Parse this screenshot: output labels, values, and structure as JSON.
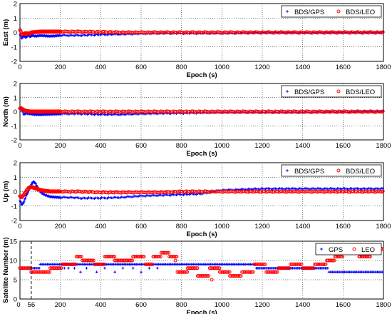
{
  "chart_data": [
    {
      "type": "scatter",
      "ylabel": "East (m)",
      "xlabel": "Epoch (s)",
      "xlim": [
        0,
        1800
      ],
      "ylim": [
        -2,
        2
      ],
      "xticks": [
        0,
        200,
        400,
        600,
        800,
        1000,
        1200,
        1400,
        1600,
        1800
      ],
      "yticks": [
        -2,
        -1,
        0,
        1,
        2
      ],
      "grid": true,
      "legend_position": "top-right",
      "series": [
        {
          "name": "BDS/GPS",
          "marker": "plus",
          "color": "#0000ff",
          "x": [
            0,
            10,
            20,
            30,
            40,
            50,
            60,
            80,
            100,
            150,
            200,
            300,
            400,
            500,
            600,
            700,
            800,
            900,
            1000,
            1100,
            1200,
            1300,
            1400,
            1500,
            1600,
            1700,
            1800
          ],
          "y": [
            -0.1,
            -0.4,
            -0.2,
            -0.35,
            -0.15,
            -0.3,
            -0.2,
            -0.25,
            -0.2,
            -0.25,
            -0.2,
            -0.2,
            -0.15,
            -0.12,
            -0.08,
            -0.05,
            -0.05,
            -0.05,
            -0.05,
            -0.03,
            0,
            0,
            -0.02,
            0,
            0,
            0,
            0
          ]
        },
        {
          "name": "BDS/LEO",
          "marker": "circle",
          "color": "#ff0000",
          "x": [
            0,
            10,
            20,
            30,
            40,
            50,
            60,
            80,
            100,
            150,
            200,
            300,
            400,
            500,
            600,
            700,
            800,
            900,
            1000,
            1100,
            1200,
            1300,
            1400,
            1500,
            1600,
            1700,
            1800
          ],
          "y": [
            0.2,
            -0.15,
            -0.1,
            -0.05,
            -0.1,
            -0.05,
            0,
            0.02,
            0.05,
            0.05,
            0.05,
            0.05,
            0.03,
            0,
            0,
            0,
            0,
            0,
            0,
            0,
            0,
            0,
            0,
            0,
            0,
            0,
            0
          ]
        }
      ]
    },
    {
      "type": "scatter",
      "ylabel": "North (m)",
      "xlabel": "Epoch (s)",
      "xlim": [
        0,
        1800
      ],
      "ylim": [
        -2,
        2
      ],
      "xticks": [
        0,
        200,
        400,
        600,
        800,
        1000,
        1200,
        1400,
        1600,
        1800
      ],
      "yticks": [
        -2,
        -1,
        0,
        1,
        2
      ],
      "grid": true,
      "legend_position": "top-right",
      "series": [
        {
          "name": "BDS/GPS",
          "marker": "plus",
          "color": "#0000ff",
          "x": [
            0,
            10,
            20,
            30,
            50,
            80,
            100,
            200,
            300,
            400,
            500,
            600,
            700,
            800,
            900,
            1000,
            1100,
            1200,
            1300,
            1400,
            1500,
            1600,
            1700,
            1800
          ],
          "y": [
            0.3,
            0.1,
            -0.2,
            -0.1,
            -0.15,
            -0.2,
            -0.2,
            -0.15,
            -0.15,
            -0.2,
            -0.2,
            -0.15,
            -0.12,
            -0.1,
            -0.08,
            -0.05,
            -0.05,
            -0.05,
            -0.05,
            -0.05,
            -0.03,
            -0.03,
            0,
            0
          ]
        },
        {
          "name": "BDS/LEO",
          "marker": "circle",
          "color": "#ff0000",
          "x": [
            0,
            10,
            20,
            30,
            50,
            80,
            100,
            200,
            300,
            400,
            500,
            600,
            700,
            800,
            900,
            1000,
            1100,
            1200,
            1300,
            1400,
            1500,
            1600,
            1700,
            1800
          ],
          "y": [
            0.25,
            0.2,
            0.1,
            0.05,
            0,
            0,
            0,
            0,
            0,
            0,
            0,
            0,
            0,
            0,
            0,
            0,
            0,
            0,
            0,
            0,
            0,
            0,
            0,
            0
          ]
        }
      ]
    },
    {
      "type": "scatter",
      "ylabel": "Up (m)",
      "xlabel": "Epoch (s)",
      "xlim": [
        0,
        1800
      ],
      "ylim": [
        -2,
        2
      ],
      "xticks": [
        0,
        200,
        400,
        600,
        800,
        1000,
        1200,
        1400,
        1600,
        1800
      ],
      "yticks": [
        -2,
        -1,
        0,
        1,
        2
      ],
      "grid": true,
      "legend_position": "top-right",
      "series": [
        {
          "name": "BDS/GPS",
          "marker": "plus",
          "color": "#0000ff",
          "x": [
            0,
            10,
            20,
            30,
            40,
            50,
            60,
            70,
            80,
            90,
            100,
            120,
            150,
            200,
            250,
            300,
            400,
            500,
            600,
            700,
            800,
            900,
            1000,
            1100,
            1200,
            1300,
            1400,
            1500,
            1600,
            1700,
            1800
          ],
          "y": [
            -0.6,
            -0.9,
            -0.7,
            -0.3,
            0,
            0.3,
            0.6,
            0.7,
            0.5,
            0.2,
            0,
            -0.2,
            -0.35,
            -0.4,
            -0.4,
            -0.45,
            -0.45,
            -0.4,
            -0.3,
            -0.25,
            -0.2,
            -0.15,
            0.1,
            0.15,
            0.2,
            0.2,
            0.2,
            0.2,
            0.2,
            0.2,
            0.2
          ]
        },
        {
          "name": "BDS/LEO",
          "marker": "circle",
          "color": "#ff0000",
          "x": [
            0,
            10,
            20,
            30,
            40,
            50,
            60,
            70,
            80,
            90,
            100,
            120,
            150,
            200,
            250,
            300,
            400,
            500,
            600,
            700,
            800,
            900,
            1000,
            1100,
            1200,
            1300,
            1400,
            1500,
            1600,
            1700,
            1800
          ],
          "y": [
            -0.3,
            -0.4,
            -0.2,
            0,
            0.2,
            0.3,
            0.3,
            0.25,
            0.2,
            0.15,
            0.1,
            0.05,
            0,
            0,
            0,
            0,
            -0.05,
            -0.05,
            -0.05,
            -0.05,
            0,
            0,
            0,
            0,
            0,
            0,
            0,
            0,
            0,
            0,
            0
          ]
        }
      ]
    },
    {
      "type": "scatter",
      "ylabel": "Satellite Number (m)",
      "xlabel": "Epoch (s)",
      "xlim": [
        0,
        1800
      ],
      "ylim": [
        0,
        15
      ],
      "xticks": [
        0,
        200,
        400,
        600,
        800,
        1000,
        1200,
        1400,
        1600,
        1800
      ],
      "xtick_labels": [
        "0",
        "200",
        "400",
        "600",
        "800",
        "1000",
        "1200",
        "1400",
        "1600",
        "1800"
      ],
      "yticks": [
        0,
        5,
        10,
        15
      ],
      "grid": true,
      "legend_position": "top-right",
      "vline": {
        "x": 56,
        "label": "56"
      },
      "series": [
        {
          "name": "GPS",
          "marker": "plus",
          "color": "#0000ff",
          "steps": [
            [
              0,
              100,
              8
            ],
            [
              100,
              230,
              9
            ],
            [
              230,
              740,
              9
            ],
            [
              740,
              1170,
              9
            ],
            [
              1170,
              1530,
              8
            ],
            [
              1530,
              1800,
              7
            ]
          ],
          "scatter_x": [
            200,
            220,
            240,
            270,
            300,
            330,
            380,
            420,
            470,
            510,
            560,
            600,
            640,
            680
          ],
          "scatter_y": [
            8,
            8,
            8,
            8,
            7,
            8,
            7,
            8,
            7,
            8,
            8,
            7,
            8,
            8
          ]
        },
        {
          "name": "LEO",
          "marker": "circle",
          "color": "#ff0000",
          "steps": [
            [
              0,
              56,
              8
            ],
            [
              56,
              150,
              7
            ],
            [
              150,
              210,
              8
            ],
            [
              210,
              280,
              9
            ],
            [
              280,
              310,
              11
            ],
            [
              310,
              370,
              10
            ],
            [
              370,
              420,
              9
            ],
            [
              420,
              470,
              11
            ],
            [
              470,
              520,
              10
            ],
            [
              520,
              560,
              10
            ],
            [
              560,
              620,
              11
            ],
            [
              620,
              660,
              9
            ],
            [
              660,
              700,
              11
            ],
            [
              700,
              740,
              12
            ],
            [
              740,
              780,
              11
            ],
            [
              780,
              830,
              7
            ],
            [
              830,
              880,
              8
            ],
            [
              880,
              940,
              6
            ],
            [
              940,
              990,
              8
            ],
            [
              990,
              1040,
              7
            ],
            [
              1040,
              1100,
              6
            ],
            [
              1100,
              1160,
              7
            ],
            [
              1160,
              1220,
              9
            ],
            [
              1220,
              1280,
              7
            ],
            [
              1280,
              1340,
              8
            ],
            [
              1340,
              1400,
              9
            ],
            [
              1400,
              1460,
              8
            ],
            [
              1460,
              1520,
              9
            ],
            [
              1520,
              1560,
              10
            ],
            [
              1560,
              1600,
              11
            ],
            [
              1600,
              1680,
              12
            ],
            [
              1680,
              1740,
              11
            ],
            [
              1740,
              1800,
              13
            ]
          ],
          "scatter_x": [
            770,
            950
          ],
          "scatter_y": [
            10,
            5
          ]
        }
      ]
    }
  ]
}
